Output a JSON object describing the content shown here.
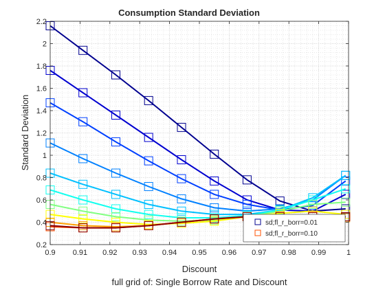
{
  "chart_data": {
    "type": "line",
    "title": "Consumption Standard Deviation",
    "xlabel": "Discount",
    "ylabel": "Standard Deviation",
    "caption": "full grid of: Single Borrow Rate and Discount",
    "xlim": [
      0.9,
      1.0
    ],
    "ylim": [
      0.2,
      2.2
    ],
    "grid": true,
    "legend_position": "bottom-right",
    "x_ticks": [
      "0.9",
      "0.91",
      "0.92",
      "0.93",
      "0.94",
      "0.95",
      "0.96",
      "0.97",
      "0.98",
      "0.99",
      "1"
    ],
    "y_ticks": [
      "0.2",
      "0.4",
      "0.6",
      "0.8",
      "1",
      "1.2",
      "1.4",
      "1.6",
      "1.8",
      "2",
      "2.2"
    ],
    "x": [
      0.9,
      0.911,
      0.922,
      0.933,
      0.944,
      0.955,
      0.966,
      0.977,
      0.988,
      0.999
    ],
    "legend": [
      {
        "label": "sd;fl_r_borr=0.01",
        "color": "#00008f"
      },
      {
        "label": "sd;fl_r_borr=0.10",
        "color": "#ff5000"
      }
    ],
    "series": [
      {
        "color": "#00008f",
        "values": [
          2.16,
          1.94,
          1.72,
          1.49,
          1.25,
          1.01,
          0.78,
          0.59,
          0.5,
          0.52
        ]
      },
      {
        "color": "#0000d0",
        "values": [
          1.76,
          1.56,
          1.36,
          1.16,
          0.96,
          0.77,
          0.6,
          0.51,
          0.5,
          0.65
        ]
      },
      {
        "color": "#0040ff",
        "values": [
          1.47,
          1.3,
          1.12,
          0.95,
          0.79,
          0.65,
          0.56,
          0.51,
          0.55,
          0.77
        ]
      },
      {
        "color": "#0080ff",
        "values": [
          1.11,
          0.97,
          0.84,
          0.72,
          0.61,
          0.53,
          0.5,
          0.52,
          0.6,
          0.82
        ]
      },
      {
        "color": "#00c0ff",
        "values": [
          0.84,
          0.74,
          0.65,
          0.56,
          0.5,
          0.47,
          0.47,
          0.51,
          0.62,
          0.82
        ]
      },
      {
        "color": "#10ffef",
        "values": [
          0.69,
          0.6,
          0.52,
          0.47,
          0.44,
          0.44,
          0.46,
          0.51,
          0.6,
          0.7
        ]
      },
      {
        "color": "#80ff80",
        "values": [
          0.56,
          0.5,
          0.45,
          0.42,
          0.41,
          0.42,
          0.45,
          0.5,
          0.56,
          0.58
        ]
      },
      {
        "color": "#ffff00",
        "values": [
          0.47,
          0.43,
          0.4,
          0.38,
          0.39,
          0.41,
          0.45,
          0.48,
          0.5,
          0.47
        ]
      },
      {
        "color": "#ffa000",
        "values": [
          0.4,
          0.37,
          0.36,
          0.37,
          0.4,
          0.43,
          0.45,
          0.46,
          0.46,
          0.44
        ]
      },
      {
        "color": "#ff5000",
        "values": [
          0.36,
          0.35,
          0.35,
          0.37,
          0.4,
          0.43,
          0.45,
          0.45,
          0.45,
          0.45
        ]
      },
      {
        "color": "#8b0000",
        "values": [
          0.37,
          0.35,
          0.35,
          0.37,
          0.4,
          0.43,
          0.45,
          0.45,
          0.45,
          0.45
        ]
      }
    ]
  }
}
